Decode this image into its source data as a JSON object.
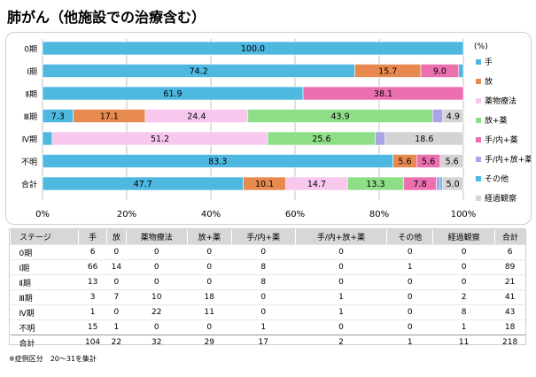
{
  "title": "肺がん（他施設での治療含む）",
  "footnote": "※症例区分　20～31を集計",
  "legend_title": "(%)",
  "chart_data": {
    "type": "bar",
    "orientation": "horizontal",
    "stacked": true,
    "categories": [
      "0期",
      "Ⅰ期",
      "Ⅱ期",
      "Ⅲ期",
      "Ⅳ期",
      "不明",
      "合計"
    ],
    "xlim": [
      0,
      100
    ],
    "x_ticks": [
      "0%",
      "20%",
      "40%",
      "60%",
      "80%",
      "100%"
    ],
    "legend_position": "right",
    "series": [
      {
        "name": "手",
        "color": "#4fb8e0",
        "values": [
          100.0,
          74.2,
          61.9,
          7.3,
          2.3,
          83.3,
          47.7
        ],
        "labels": [
          "100.0",
          "74.2",
          "61.9",
          "7.3",
          "",
          "83.3",
          "47.7"
        ]
      },
      {
        "name": "放",
        "color": "#e88a50",
        "values": [
          0,
          15.7,
          0,
          17.1,
          0,
          5.6,
          10.1
        ],
        "labels": [
          "",
          "15.7",
          "",
          "17.1",
          "",
          "5.6",
          "10.1"
        ]
      },
      {
        "name": "薬物療法",
        "color": "#f7c7ee",
        "values": [
          0,
          0,
          0,
          24.4,
          51.2,
          0,
          14.7
        ],
        "labels": [
          "",
          "",
          "",
          "24.4",
          "51.2",
          "",
          "14.7"
        ]
      },
      {
        "name": "放+薬",
        "color": "#8ede87",
        "values": [
          0,
          0,
          0,
          43.9,
          25.6,
          0,
          13.3
        ],
        "labels": [
          "",
          "",
          "",
          "43.9",
          "25.6",
          "",
          "13.3"
        ]
      },
      {
        "name": "手/内+薬",
        "color": "#ec6fb0",
        "values": [
          0,
          9.0,
          38.1,
          0,
          0,
          5.6,
          7.8
        ],
        "labels": [
          "",
          "9.0",
          "38.1",
          "",
          "",
          "5.6",
          "7.8"
        ]
      },
      {
        "name": "手/内+放+薬",
        "color": "#a9a4e8",
        "values": [
          0,
          0,
          0,
          2.4,
          2.3,
          0,
          0.9
        ],
        "labels": [
          "",
          "",
          "",
          "",
          "",
          "",
          ""
        ]
      },
      {
        "name": "その他",
        "color": "#4fb8e0",
        "values": [
          0,
          1.1,
          0,
          0,
          0,
          0,
          0.5
        ],
        "labels": [
          "",
          "",
          "",
          "",
          "",
          "",
          ""
        ]
      },
      {
        "name": "経過観察",
        "color": "#d4d4d4",
        "values": [
          0,
          0,
          0,
          4.9,
          18.6,
          5.6,
          5.0
        ],
        "labels": [
          "",
          "",
          "",
          "4.9",
          "18.6",
          "5.6",
          "5.0"
        ]
      }
    ]
  },
  "table": {
    "headers": [
      "ステージ",
      "手",
      "放",
      "薬物療法",
      "放+薬",
      "手/内+薬",
      "手/内+放+薬",
      "その他",
      "経過観察",
      "合計"
    ],
    "rows": [
      [
        "0期",
        "6",
        "0",
        "0",
        "0",
        "0",
        "0",
        "0",
        "0",
        "6"
      ],
      [
        "Ⅰ期",
        "66",
        "14",
        "0",
        "0",
        "8",
        "0",
        "1",
        "0",
        "89"
      ],
      [
        "Ⅱ期",
        "13",
        "0",
        "0",
        "0",
        "8",
        "0",
        "0",
        "0",
        "21"
      ],
      [
        "Ⅲ期",
        "3",
        "7",
        "10",
        "18",
        "0",
        "1",
        "0",
        "2",
        "41"
      ],
      [
        "Ⅳ期",
        "1",
        "0",
        "22",
        "11",
        "0",
        "1",
        "0",
        "8",
        "43"
      ],
      [
        "不明",
        "15",
        "1",
        "0",
        "0",
        "1",
        "0",
        "0",
        "1",
        "18"
      ],
      [
        "合計",
        "104",
        "22",
        "32",
        "29",
        "17",
        "2",
        "1",
        "11",
        "218"
      ]
    ]
  }
}
